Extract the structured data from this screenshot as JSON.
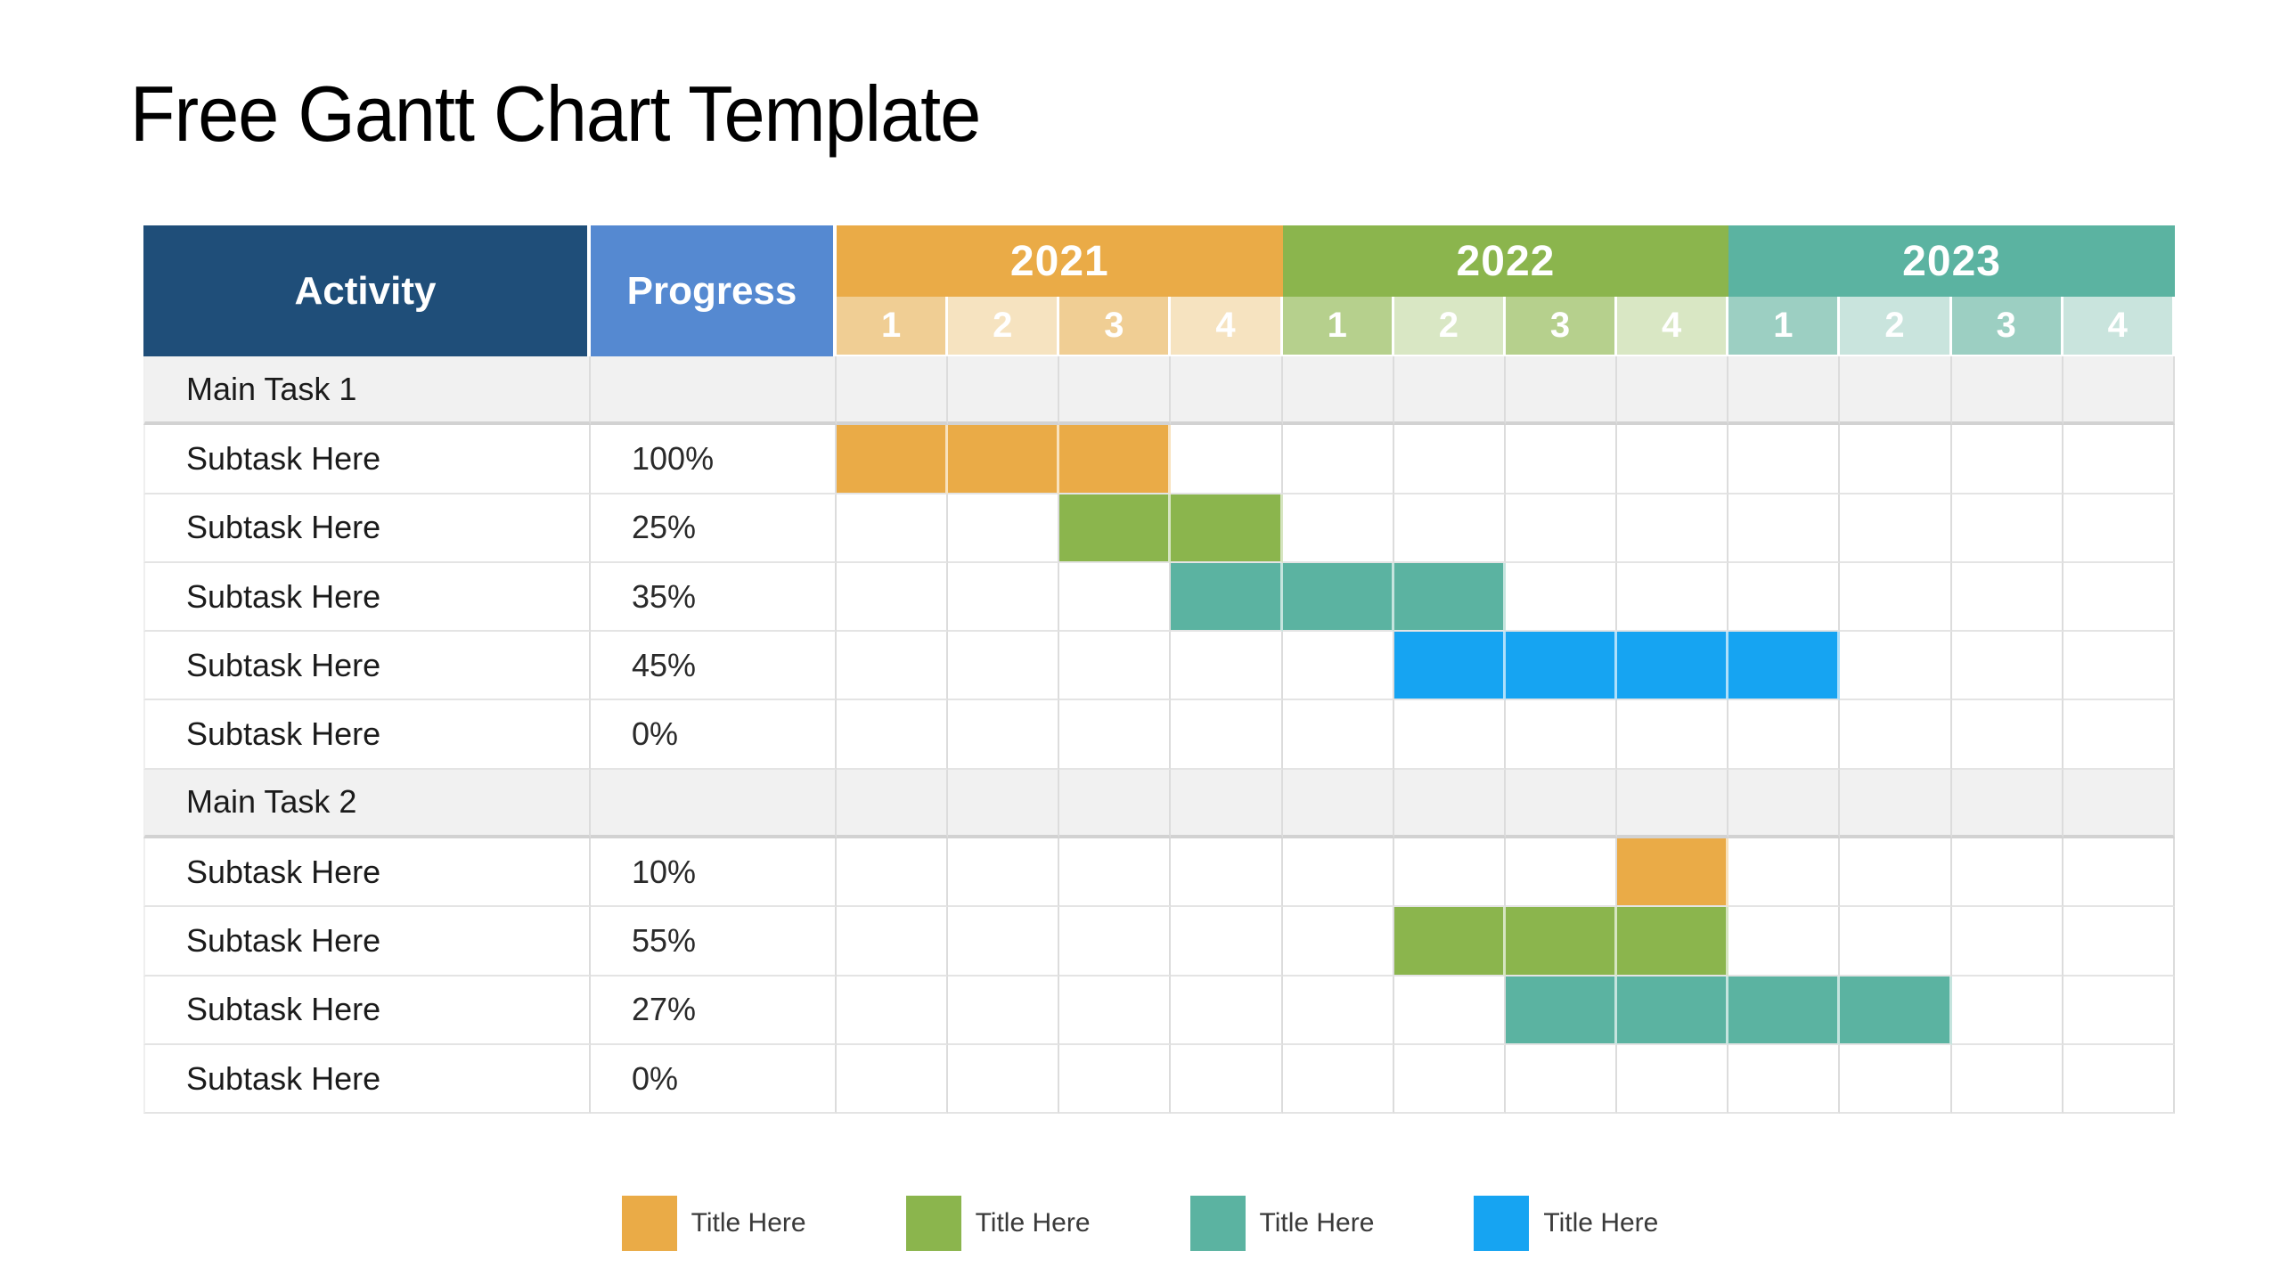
{
  "page": {
    "title": "Free Gantt Chart Template"
  },
  "colors": {
    "activity_header": "#1F4E79",
    "progress_header": "#5589D1",
    "grid_line": "#DCDCDC",
    "row_line": "#E4E4E4",
    "main_row_bg": "#F1F1F1",
    "main_row_line": "#D2D2D2",
    "bars": {
      "orange": "#EAAB47",
      "green": "#8BB54D",
      "teal": "#5BB3A1",
      "blue": "#16A4F2"
    }
  },
  "table": {
    "headers": {
      "activity": "Activity",
      "progress": "Progress"
    },
    "years": [
      {
        "label": "2021",
        "band": "#EAAB47",
        "tint_odd": "#F0CE94",
        "tint_even": "#F6E3C0",
        "quarters": [
          "1",
          "2",
          "3",
          "4"
        ]
      },
      {
        "label": "2022",
        "band": "#8BB54D",
        "tint_odd": "#B6D08D",
        "tint_even": "#D9E7C4",
        "quarters": [
          "1",
          "2",
          "3",
          "4"
        ]
      },
      {
        "label": "2023",
        "band": "#5BB3A1",
        "tint_odd": "#9CCFC2",
        "tint_even": "#C9E4DD",
        "quarters": [
          "1",
          "2",
          "3",
          "4"
        ]
      }
    ],
    "rows": [
      {
        "type": "main",
        "label": "Main Task 1",
        "progress": "",
        "bar": null
      },
      {
        "type": "sub",
        "label": "Subtask Here",
        "progress": "100%",
        "bar": {
          "start": 1,
          "span": 3,
          "color": "orange"
        }
      },
      {
        "type": "sub",
        "label": "Subtask Here",
        "progress": "25%",
        "bar": {
          "start": 3,
          "span": 2,
          "color": "green"
        }
      },
      {
        "type": "sub",
        "label": "Subtask Here",
        "progress": "35%",
        "bar": {
          "start": 4,
          "span": 3,
          "color": "teal"
        }
      },
      {
        "type": "sub",
        "label": "Subtask Here",
        "progress": "45%",
        "bar": {
          "start": 6,
          "span": 4,
          "color": "blue"
        }
      },
      {
        "type": "sub",
        "label": "Subtask Here",
        "progress": "0%",
        "bar": null
      },
      {
        "type": "main",
        "label": "Main Task 2",
        "progress": "",
        "bar": null
      },
      {
        "type": "sub",
        "label": "Subtask Here",
        "progress": "10%",
        "bar": {
          "start": 8,
          "span": 1,
          "color": "orange"
        }
      },
      {
        "type": "sub",
        "label": "Subtask Here",
        "progress": "55%",
        "bar": {
          "start": 6,
          "span": 3,
          "color": "green"
        }
      },
      {
        "type": "sub",
        "label": "Subtask Here",
        "progress": "27%",
        "bar": {
          "start": 7,
          "span": 4,
          "color": "teal"
        }
      },
      {
        "type": "sub",
        "label": "Subtask Here",
        "progress": "0%",
        "bar": null
      }
    ]
  },
  "legend": [
    {
      "label": "Title Here",
      "color": "orange"
    },
    {
      "label": "Title Here",
      "color": "green"
    },
    {
      "label": "Title Here",
      "color": "teal"
    },
    {
      "label": "Title Here",
      "color": "blue"
    }
  ],
  "chart_data": {
    "type": "bar",
    "subtype": "gantt",
    "title": "Free Gantt Chart Template",
    "x": [
      "2021 Q1",
      "2021 Q2",
      "2021 Q3",
      "2021 Q4",
      "2022 Q1",
      "2022 Q2",
      "2022 Q3",
      "2022 Q4",
      "2023 Q1",
      "2023 Q2",
      "2023 Q3",
      "2023 Q4"
    ],
    "columns": [
      "Activity",
      "Progress",
      "2021",
      "2022",
      "2023"
    ],
    "tasks": [
      {
        "group": "Main Task 1",
        "name": "Main Task 1",
        "progress": null,
        "start": null,
        "end": null,
        "color": null
      },
      {
        "group": "Main Task 1",
        "name": "Subtask Here",
        "progress": 100,
        "start": "2021 Q1",
        "end": "2021 Q3",
        "color": "#EAAB47"
      },
      {
        "group": "Main Task 1",
        "name": "Subtask Here",
        "progress": 25,
        "start": "2021 Q3",
        "end": "2021 Q4",
        "color": "#8BB54D"
      },
      {
        "group": "Main Task 1",
        "name": "Subtask Here",
        "progress": 35,
        "start": "2021 Q4",
        "end": "2022 Q2",
        "color": "#5BB3A1"
      },
      {
        "group": "Main Task 1",
        "name": "Subtask Here",
        "progress": 45,
        "start": "2022 Q2",
        "end": "2023 Q1",
        "color": "#16A4F2"
      },
      {
        "group": "Main Task 1",
        "name": "Subtask Here",
        "progress": 0,
        "start": null,
        "end": null,
        "color": null
      },
      {
        "group": "Main Task 2",
        "name": "Main Task 2",
        "progress": null,
        "start": null,
        "end": null,
        "color": null
      },
      {
        "group": "Main Task 2",
        "name": "Subtask Here",
        "progress": 10,
        "start": "2022 Q4",
        "end": "2022 Q4",
        "color": "#EAAB47"
      },
      {
        "group": "Main Task 2",
        "name": "Subtask Here",
        "progress": 55,
        "start": "2022 Q2",
        "end": "2022 Q4",
        "color": "#8BB54D"
      },
      {
        "group": "Main Task 2",
        "name": "Subtask Here",
        "progress": 27,
        "start": "2022 Q3",
        "end": "2023 Q2",
        "color": "#5BB3A1"
      },
      {
        "group": "Main Task 2",
        "name": "Subtask Here",
        "progress": 0,
        "start": null,
        "end": null,
        "color": null
      }
    ],
    "legend_entries": [
      "Title Here",
      "Title Here",
      "Title Here",
      "Title Here"
    ],
    "legend_position": "bottom-center",
    "grid": true
  }
}
